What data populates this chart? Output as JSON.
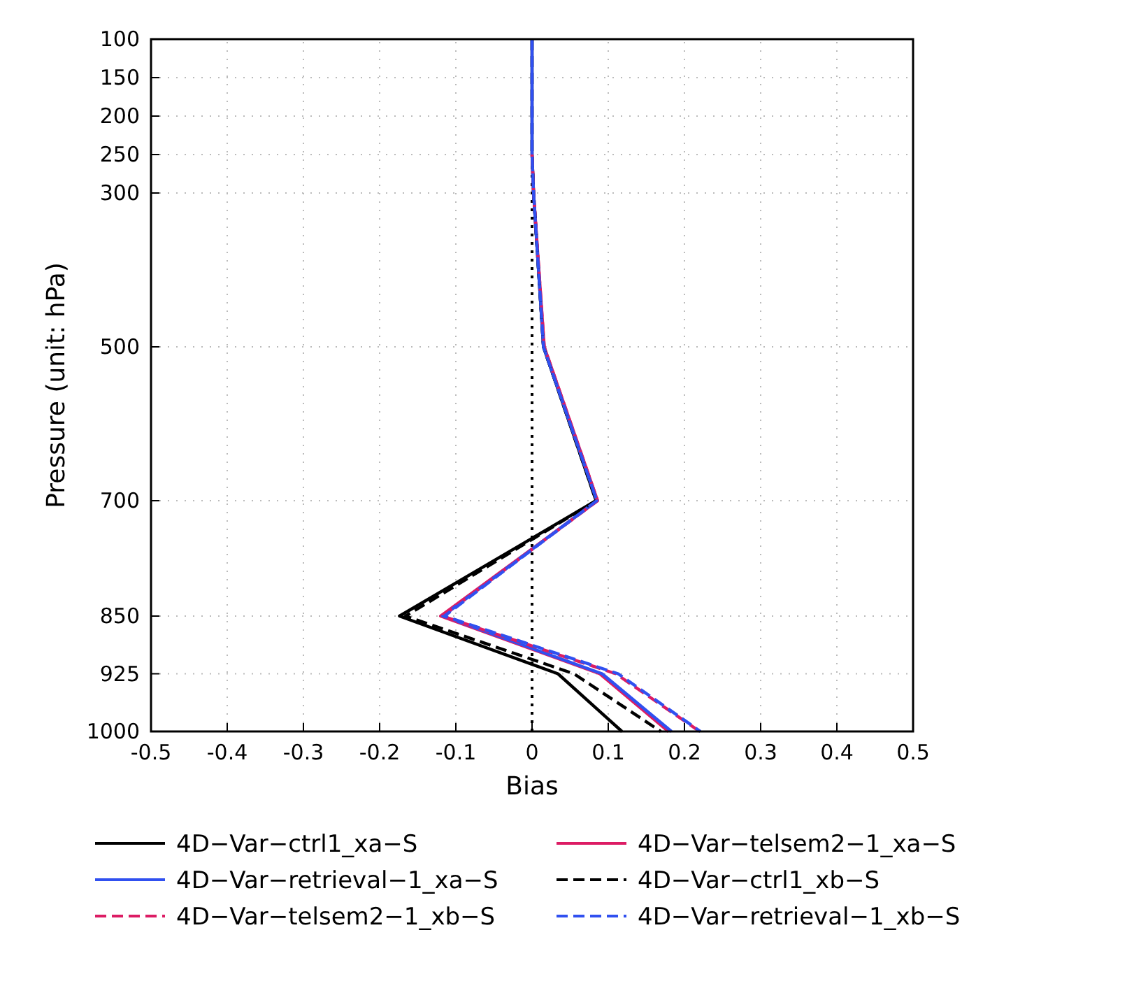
{
  "chart_data": {
    "type": "line",
    "orientation": "horizontal",
    "xlabel": "Bias",
    "ylabel": "Pressure (unit: hPa)",
    "x": [
      100,
      150,
      200,
      250,
      300,
      500,
      700,
      850,
      925,
      1000
    ],
    "xlim": [
      -0.5,
      0.5
    ],
    "xticks": [
      -0.5,
      -0.4,
      -0.3,
      -0.2,
      -0.1,
      {
        "value": 0,
        "label": "0"
      },
      0.1,
      0.2,
      0.3,
      0.4,
      0.5
    ],
    "ylim": [
      1000,
      100
    ],
    "yticks": [
      100,
      150,
      200,
      250,
      300,
      500,
      700,
      850,
      925,
      1000
    ],
    "grid": true,
    "legend": "bottom",
    "marker": "none",
    "ref_lines": [
      {
        "axis": "x",
        "value": 0,
        "color": "#000000",
        "line_style": "dotted"
      }
    ],
    "series": [
      {
        "name": "4D−Var−ctrl1_xa−S",
        "color": "#000000",
        "line_style": "solid",
        "values": [
          0,
          0,
          0,
          0,
          0.002,
          0.015,
          0.084,
          -0.174,
          0.034,
          0.118
        ]
      },
      {
        "name": "4D−Var−telsem2−1_xa−S",
        "color": "#dc1c64",
        "line_style": "solid",
        "values": [
          null,
          null,
          null,
          0,
          0.002,
          0.016,
          0.086,
          -0.12,
          0.089,
          0.179
        ]
      },
      {
        "name": "4D−Var−retrieval−1_xa−S",
        "color": "#3050f0",
        "line_style": "solid",
        "values": [
          0,
          0,
          0,
          0,
          0.002,
          0.015,
          0.085,
          -0.117,
          0.092,
          0.183
        ]
      },
      {
        "name": "4D−Var−ctrl1_xb−S",
        "color": "#000000",
        "line_style": "dashed",
        "values": [
          0,
          0,
          0,
          0,
          0.002,
          0.015,
          0.084,
          -0.166,
          0.055,
          0.169
        ]
      },
      {
        "name": "4D−Var−telsem2−1_xb−S",
        "color": "#dc1c64",
        "line_style": "dashed",
        "values": [
          null,
          null,
          null,
          0,
          0.002,
          0.016,
          0.086,
          -0.118,
          0.11,
          0.22
        ]
      },
      {
        "name": "4D−Var−retrieval−1_xb−S",
        "color": "#3050f0",
        "line_style": "dashed",
        "values": [
          0,
          0,
          0,
          0,
          0.002,
          0.015,
          0.085,
          -0.115,
          0.113,
          0.221
        ]
      }
    ]
  }
}
